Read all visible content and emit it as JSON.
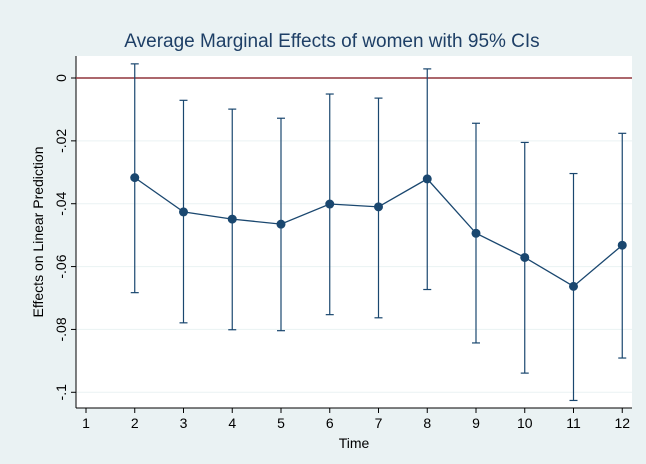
{
  "chart_data": {
    "type": "errorline",
    "title": "Average Marginal Effects of women with 95% CIs",
    "xlabel": "Time",
    "ylabel": "Effects on Linear Prediction",
    "x": [
      2,
      3,
      4,
      5,
      6,
      7,
      8,
      9,
      10,
      11,
      12
    ],
    "series": [
      {
        "color": "#1a476f",
        "values": [
          -0.0317,
          -0.0426,
          -0.0449,
          -0.0465,
          -0.0401,
          -0.041,
          -0.0321,
          -0.0494,
          -0.0571,
          -0.0663,
          -0.0532
        ],
        "lower": [
          -0.0683,
          -0.0779,
          -0.0801,
          -0.0804,
          -0.0753,
          -0.0763,
          -0.0673,
          -0.0843,
          -0.0939,
          -0.1026,
          -0.0891
        ],
        "upper": [
          0.0045,
          -0.0071,
          -0.0099,
          -0.0128,
          -0.0051,
          -0.0064,
          0.0029,
          -0.0144,
          -0.0205,
          -0.0304,
          -0.0176
        ]
      }
    ],
    "reference_line": 0,
    "reference_color": "#90353b",
    "xlim": [
      0.795,
      12.2
    ],
    "xticks": [
      1,
      2,
      3,
      4,
      5,
      6,
      7,
      8,
      9,
      10,
      11,
      12
    ],
    "ylim": [
      -0.105,
      0.007
    ],
    "yticks": [
      0,
      {
        "value": -0.02,
        "label": "-.02"
      },
      {
        "value": -0.04,
        "label": "-.04"
      },
      {
        "value": -0.06,
        "label": "-.06"
      },
      {
        "value": -0.08,
        "label": "-.08"
      },
      {
        "value": -0.1,
        "label": "-.1"
      }
    ],
    "grid": true
  }
}
